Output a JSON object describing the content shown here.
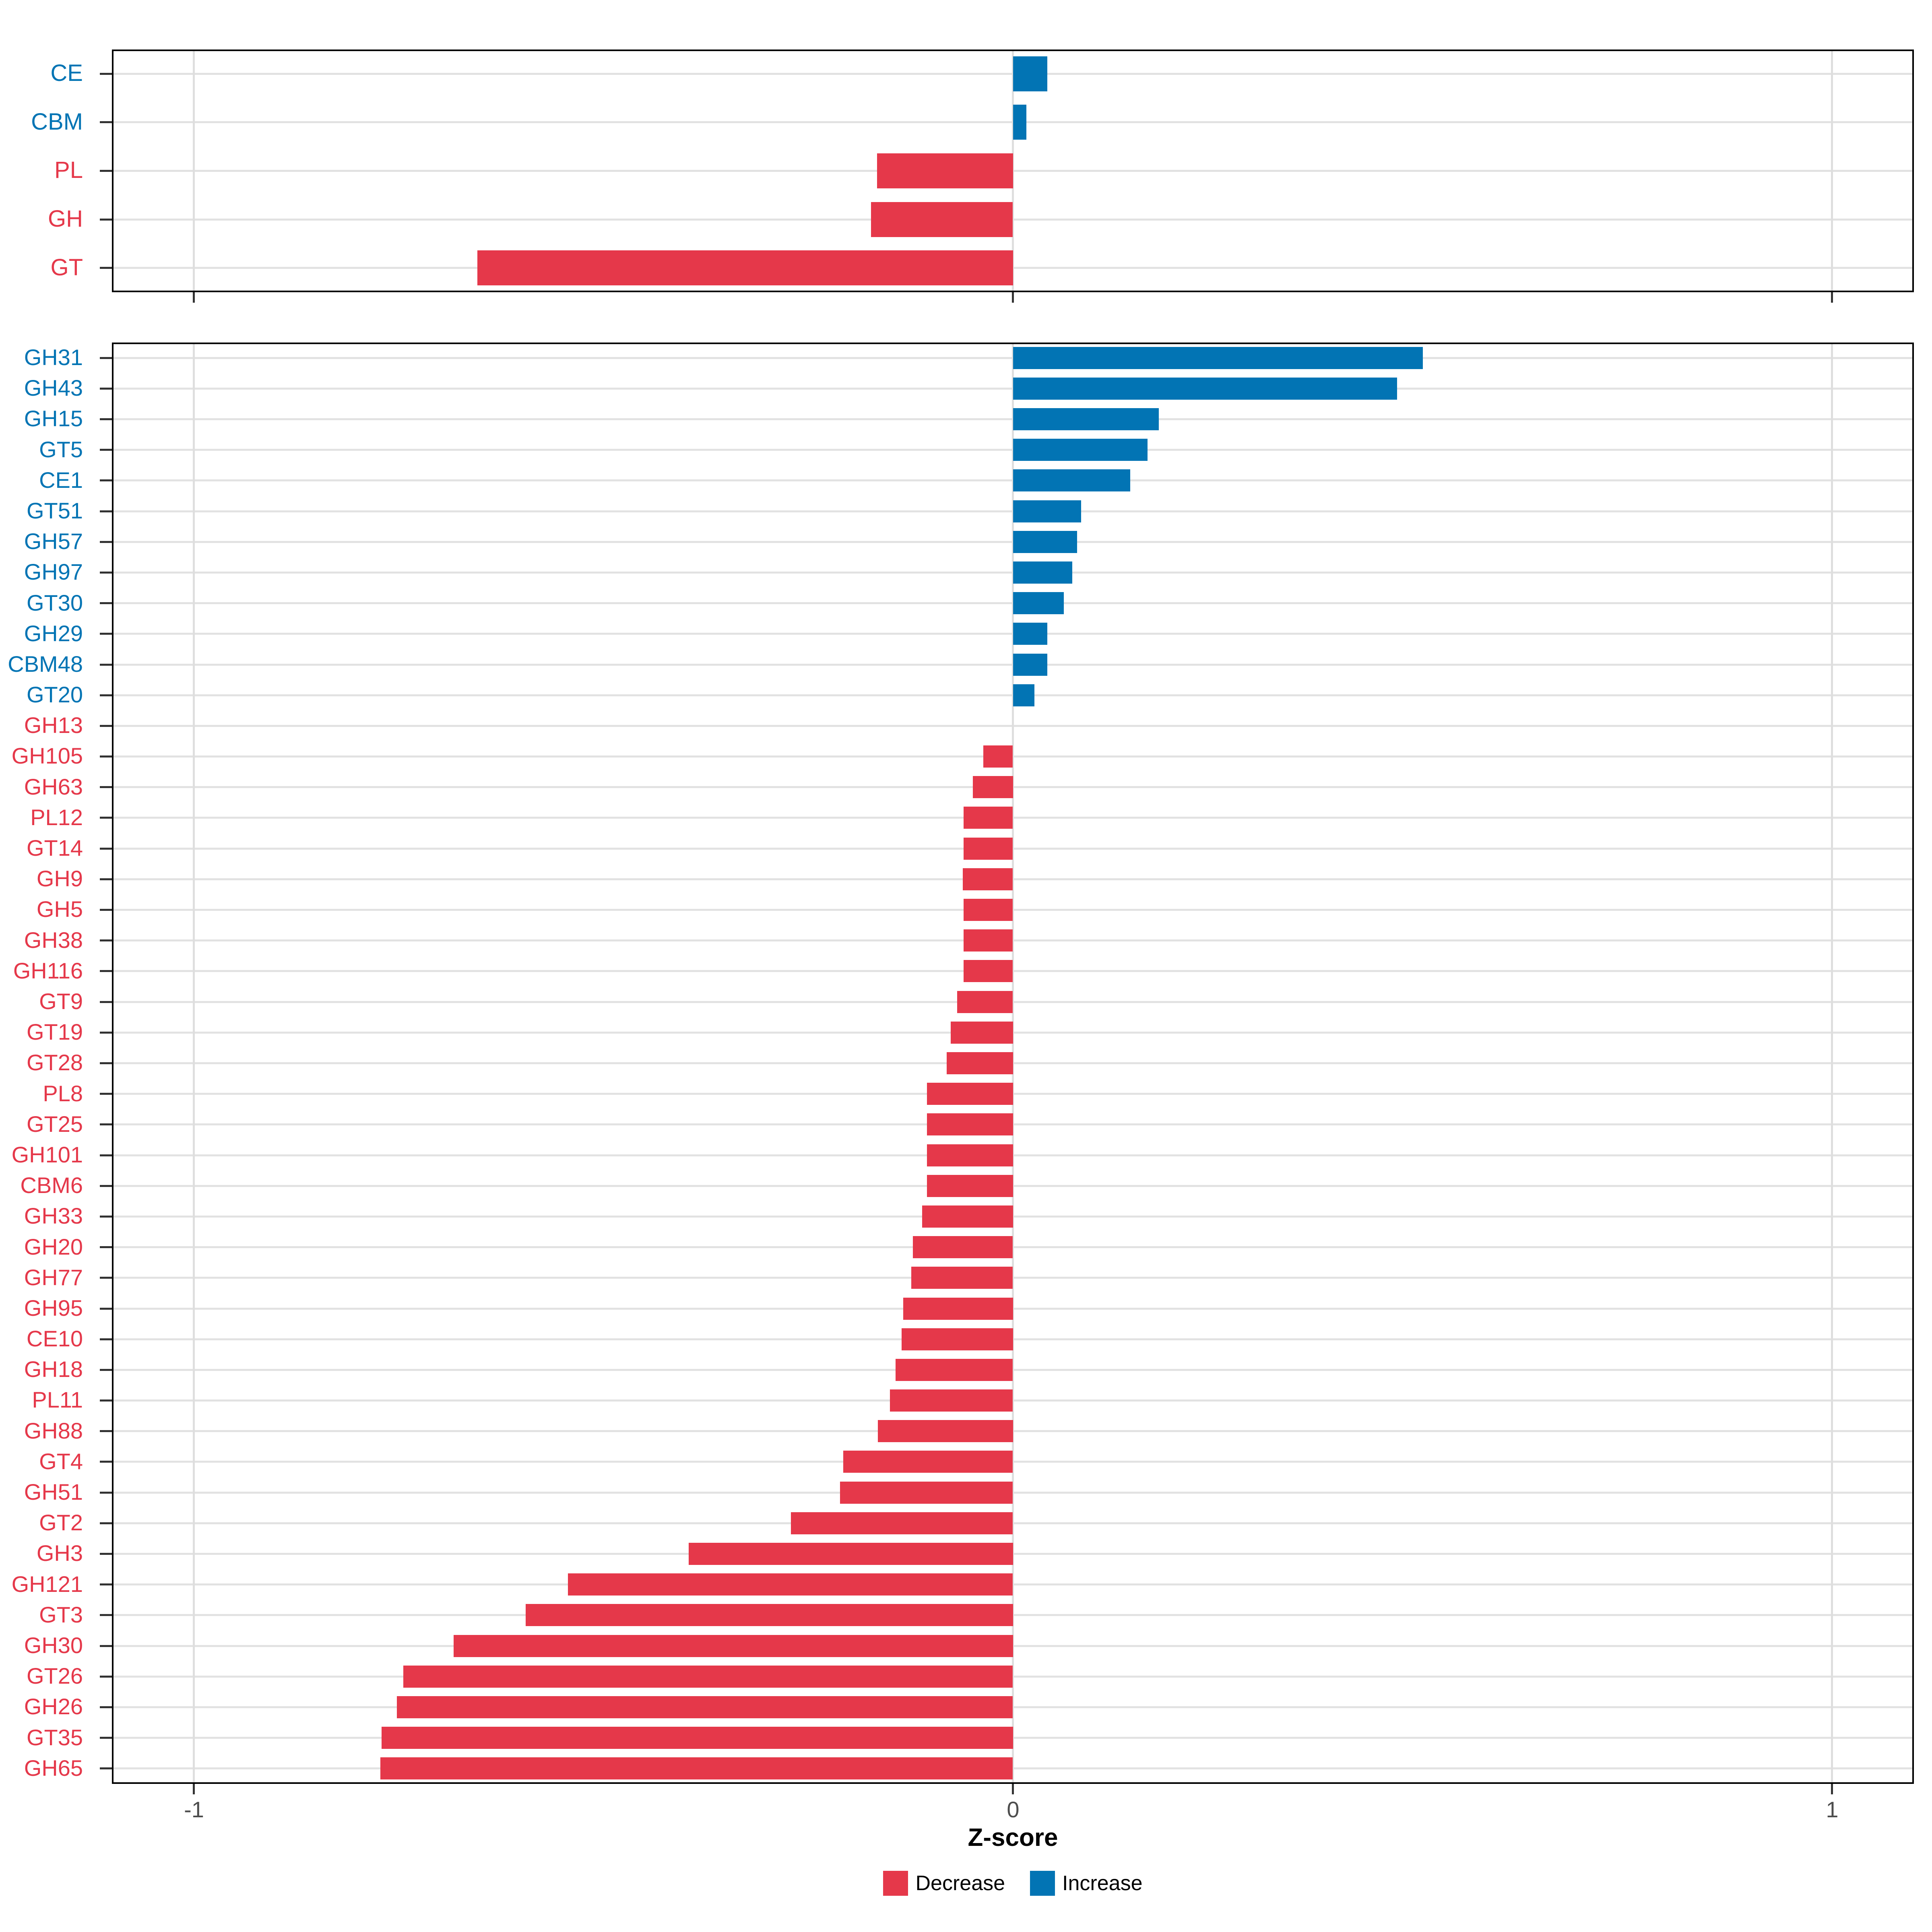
{
  "axis": {
    "xlabel": "Z-score",
    "ticks": [
      -1,
      0,
      1
    ],
    "tick_labels": [
      "-1",
      "0",
      "1"
    ],
    "xlim": [
      -1.1,
      1.1
    ]
  },
  "legend": {
    "items": [
      {
        "label": "Decrease",
        "color": "#e5384a"
      },
      {
        "label": "Increase",
        "color": "#0274b4"
      }
    ]
  },
  "colors": {
    "decrease": "#e5384a",
    "increase": "#0274b4",
    "axis_text": "#4d4d4d",
    "gridline_h": "#e2e2e2",
    "gridline_v": "#dedede",
    "panel_border": "#000000"
  },
  "chart_data": [
    {
      "type": "bar",
      "orientation": "horizontal",
      "title": "",
      "xlabel": "Z-score",
      "ylabel": "",
      "xlim": [
        -1.1,
        1.1
      ],
      "grid": true,
      "legend_position": "bottom",
      "panel": "cazyme-classes",
      "categories": [
        "CE",
        "CBM",
        "PL",
        "GH",
        "GT"
      ],
      "values": [
        0.042,
        0.016,
        -0.166,
        -0.173,
        -0.654
      ],
      "directions": [
        "increase",
        "increase",
        "decrease",
        "decrease",
        "decrease"
      ]
    },
    {
      "type": "bar",
      "orientation": "horizontal",
      "title": "",
      "xlabel": "Z-score",
      "ylabel": "",
      "xlim": [
        -1.1,
        1.1
      ],
      "grid": true,
      "legend_position": "bottom",
      "panel": "cazyme-families",
      "categories": [
        "GH31",
        "GH43",
        "GH15",
        "GT5",
        "CE1",
        "GT51",
        "GH57",
        "GH97",
        "GT30",
        "GH29",
        "CBM48",
        "GT20",
        "GH13",
        "GH105",
        "GH63",
        "PL12",
        "GT14",
        "GH9",
        "GH5",
        "GH38",
        "GH116",
        "GT9",
        "GT19",
        "GT28",
        "PL8",
        "GT25",
        "GH101",
        "CBM6",
        "GH33",
        "GH20",
        "GH77",
        "GH95",
        "CE10",
        "GH18",
        "PL11",
        "GH88",
        "GT4",
        "GH51",
        "GT2",
        "GH3",
        "GH121",
        "GT3",
        "GH30",
        "GT26",
        "GH26",
        "GT35",
        "GH65"
      ],
      "values": [
        0.5,
        0.469,
        0.178,
        0.164,
        0.143,
        0.083,
        0.078,
        0.072,
        0.062,
        0.042,
        0.042,
        0.026,
        0.0,
        -0.036,
        -0.049,
        -0.06,
        -0.06,
        -0.061,
        -0.06,
        -0.06,
        -0.06,
        -0.068,
        -0.076,
        -0.081,
        -0.105,
        -0.105,
        -0.105,
        -0.105,
        -0.111,
        -0.122,
        -0.124,
        -0.134,
        -0.136,
        -0.143,
        -0.15,
        -0.165,
        -0.207,
        -0.211,
        -0.271,
        -0.396,
        -0.543,
        -0.595,
        -0.683,
        -0.744,
        -0.752,
        -0.771,
        -0.772
      ],
      "directions": [
        "increase",
        "increase",
        "increase",
        "increase",
        "increase",
        "increase",
        "increase",
        "increase",
        "increase",
        "increase",
        "increase",
        "increase",
        "decrease",
        "decrease",
        "decrease",
        "decrease",
        "decrease",
        "decrease",
        "decrease",
        "decrease",
        "decrease",
        "decrease",
        "decrease",
        "decrease",
        "decrease",
        "decrease",
        "decrease",
        "decrease",
        "decrease",
        "decrease",
        "decrease",
        "decrease",
        "decrease",
        "decrease",
        "decrease",
        "decrease",
        "decrease",
        "decrease",
        "decrease",
        "decrease",
        "decrease",
        "decrease",
        "decrease",
        "decrease",
        "decrease",
        "decrease",
        "decrease"
      ]
    }
  ]
}
